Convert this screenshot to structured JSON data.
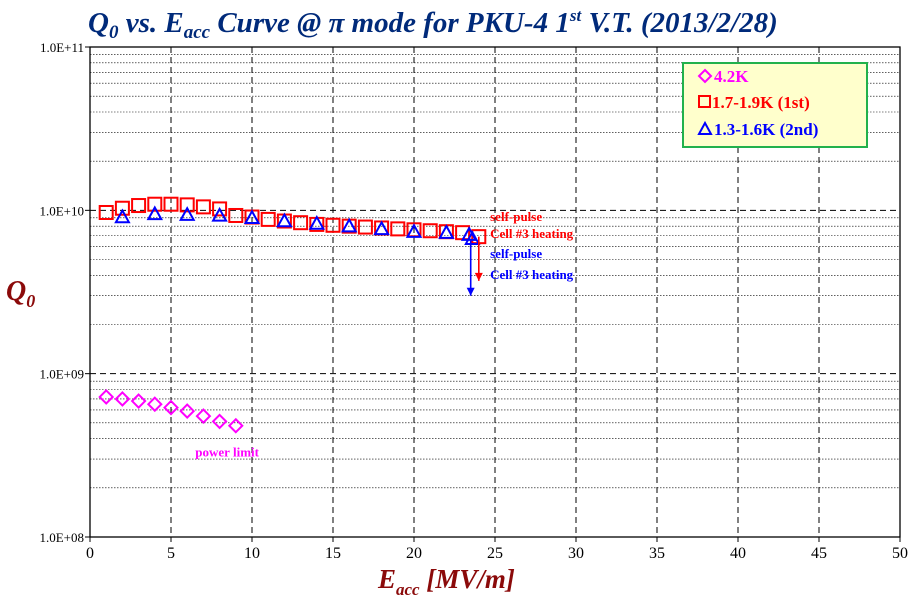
{
  "chart_data": {
    "type": "scatter",
    "title": {
      "q": "Q",
      "q_sub": "0",
      "vs": " vs. ",
      "e": "E",
      "e_sub": "acc",
      "rest": " Curve @ π mode for PKU-4 1",
      "sup": "st",
      "tail": " V.T. (2013/2/28)"
    },
    "xlabel": {
      "main": "E",
      "sub": "acc",
      "unit": " [MV/m]"
    },
    "ylabel": {
      "main": "Q",
      "sub": "0"
    },
    "xlim": [
      0,
      50
    ],
    "ylim": [
      100000000,
      100000000000
    ],
    "yscale": "log",
    "x_ticks": [
      "0",
      "5",
      "10",
      "15",
      "20",
      "25",
      "30",
      "35",
      "40",
      "45",
      "50"
    ],
    "y_ticks": [
      "1.0E+08",
      "1.0E+09",
      "1.0E+10",
      "1.0E+11"
    ],
    "grid": true,
    "legend_position": "top-right",
    "series": [
      {
        "name": "4.2K",
        "marker": "diamond",
        "color": "#ff00ff",
        "x": [
          1,
          2,
          3,
          4,
          5,
          6,
          7,
          8,
          9
        ],
        "y": [
          720000000,
          700000000,
          680000000,
          650000000,
          620000000,
          590000000,
          550000000,
          510000000,
          480000000
        ]
      },
      {
        "name": "1.7-1.9K (1st)",
        "marker": "square",
        "color": "#ff0000",
        "x": [
          1,
          2,
          3,
          4,
          5,
          6,
          7,
          8,
          9,
          10,
          11,
          12,
          13,
          14,
          15,
          16,
          17,
          18,
          19,
          20,
          21,
          22,
          23,
          24
        ],
        "y": [
          9700000000,
          10300000000,
          10700000000,
          10900000000,
          10900000000,
          10800000000,
          10500000000,
          10200000000,
          9300000000,
          9100000000,
          8800000000,
          8600000000,
          8400000000,
          8200000000,
          8100000000,
          8000000000,
          7900000000,
          7800000000,
          7700000000,
          7600000000,
          7500000000,
          7400000000,
          7300000000,
          6900000000
        ]
      },
      {
        "name": "1.3-1.6K (2nd)",
        "marker": "triangle",
        "color": "#0000ff",
        "x": [
          2,
          4,
          6,
          8,
          10,
          12,
          14,
          16,
          18,
          20,
          22,
          23.4,
          23.6
        ],
        "y": [
          9100000000,
          9500000000,
          9400000000,
          9300000000,
          9000000000,
          8600000000,
          8300000000,
          8000000000,
          7700000000,
          7400000000,
          7300000000,
          7100000000,
          6700000000
        ]
      }
    ],
    "annotations": [
      {
        "id": "red-self-pulse",
        "text": "self-pulse",
        "color": "#ff0000",
        "x": 24.7,
        "y": 8600000000
      },
      {
        "id": "red-cell-heating",
        "text": "Cell #3 heating",
        "color": "#ff0000",
        "x": 24.7,
        "y": 6750000000
      },
      {
        "id": "blue-self-pulse",
        "text": "self-pulse",
        "color": "#0000ff",
        "x": 24.7,
        "y": 5100000000
      },
      {
        "id": "blue-cell-heating",
        "text": "Cell #3 heating",
        "color": "#0000ff",
        "x": 24.7,
        "y": 3800000000
      },
      {
        "id": "power-limit",
        "text": "power limit",
        "color": "#ff00ff",
        "x": 6.5,
        "y": 310000000
      }
    ],
    "drop_arrows": [
      {
        "color": "#ff0000",
        "x": 24.0,
        "y_from": 6900000000,
        "y_to": 3700000000
      },
      {
        "color": "#0000ff",
        "x": 23.5,
        "y_from": 6700000000,
        "y_to": 3000000000
      }
    ]
  }
}
